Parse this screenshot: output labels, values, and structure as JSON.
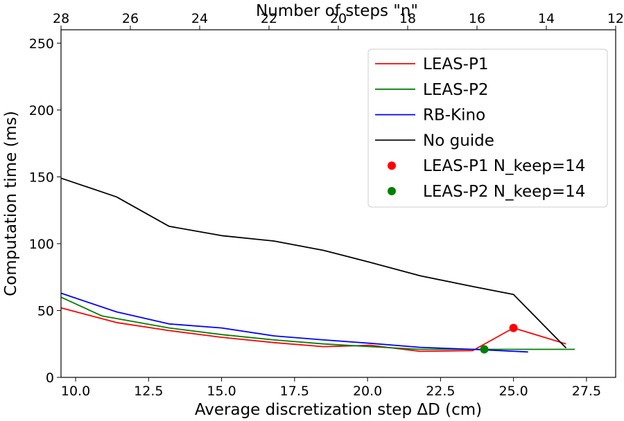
{
  "chart_data": {
    "type": "line",
    "xlabel": "Average discretization step ΔD (cm)",
    "ylabel": "Computation time (ms)",
    "top_xlabel": "Number of steps \"n\"",
    "xlim": [
      9.5,
      28.5
    ],
    "ylim": [
      0,
      260
    ],
    "top_xlim": [
      28,
      12
    ],
    "xticks": [
      10.0,
      12.5,
      15.0,
      17.5,
      20.0,
      22.5,
      25.0,
      27.5
    ],
    "xtick_labels": [
      "10.0",
      "12.5",
      "15.0",
      "17.5",
      "20.0",
      "22.5",
      "25.0",
      "27.5"
    ],
    "yticks": [
      0,
      50,
      100,
      150,
      200,
      250
    ],
    "ytick_labels": [
      "0",
      "50",
      "100",
      "150",
      "200",
      "250"
    ],
    "top_xticks": [
      28,
      26,
      24,
      22,
      20,
      18,
      16,
      14,
      12
    ],
    "top_xtick_labels": [
      "28",
      "26",
      "24",
      "22",
      "20",
      "18",
      "16",
      "14",
      "12"
    ],
    "grid": false,
    "legend_position": "top-right",
    "series": [
      {
        "name": "LEAS-P1",
        "color": "#ff0000",
        "x": [
          9.5,
          11.4,
          13.2,
          15.0,
          16.8,
          18.5,
          20.1,
          21.8,
          23.6,
          25.0,
          26.8
        ],
        "y": [
          52,
          41,
          35,
          30,
          26,
          23,
          24,
          19.5,
          20,
          37,
          25
        ]
      },
      {
        "name": "LEAS-P2",
        "color": "#008000",
        "x": [
          9.5,
          10.9,
          11.4,
          13.2,
          15.0,
          16.8,
          18.5,
          20.1,
          21.8,
          23.6,
          25.0,
          27.1
        ],
        "y": [
          60,
          46,
          44,
          37,
          32,
          28,
          25,
          23,
          21,
          21,
          21,
          21
        ]
      },
      {
        "name": "RB-Kino",
        "color": "#0000ff",
        "x": [
          9.5,
          11.4,
          13.2,
          15.0,
          16.8,
          18.5,
          20.1,
          21.8,
          23.6,
          25.5
        ],
        "y": [
          63,
          49,
          40,
          37,
          31,
          28,
          25.5,
          22.5,
          21,
          19
        ]
      },
      {
        "name": "No guide",
        "color": "#000000",
        "x": [
          9.5,
          11.4,
          13.2,
          15.0,
          16.8,
          18.5,
          20.1,
          21.8,
          23.6,
          25.0,
          26.8
        ],
        "y": [
          149,
          135,
          113,
          106,
          102,
          95,
          86,
          76,
          68,
          62,
          22
        ]
      }
    ],
    "points": [
      {
        "name": "LEAS-P1 N_keep=14",
        "color": "#ff0000",
        "x": 25.0,
        "y": 37
      },
      {
        "name": "LEAS-P2 N_keep=14",
        "color": "#008000",
        "x": 24.0,
        "y": 21
      }
    ]
  }
}
